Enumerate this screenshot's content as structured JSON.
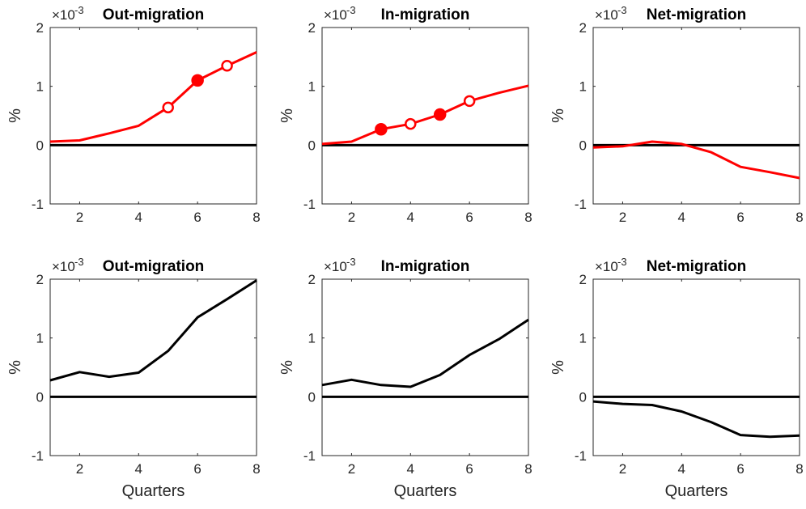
{
  "chart_data": [
    {
      "type": "line",
      "title": "Out-migration",
      "ylabel": "%",
      "xlabel": "",
      "exponent_label": "×10",
      "exponent": "-3",
      "xlim": [
        1,
        8
      ],
      "ylim": [
        -1,
        2
      ],
      "xticks": [
        "2",
        "4",
        "6",
        "8"
      ],
      "yticks": [
        "-1",
        "0",
        "1",
        "2"
      ],
      "line_color": "#ff0000",
      "series": [
        {
          "x": [
            1,
            2,
            3,
            4,
            5,
            6,
            7,
            8
          ],
          "y": [
            0.06,
            0.08,
            0.2,
            0.33,
            0.64,
            1.1,
            1.35,
            1.58
          ]
        }
      ],
      "markers": [
        {
          "x": 5,
          "y": 0.64,
          "filled": false
        },
        {
          "x": 6,
          "y": 1.1,
          "filled": true
        },
        {
          "x": 7,
          "y": 1.35,
          "filled": false
        }
      ]
    },
    {
      "type": "line",
      "title": "In-migration",
      "ylabel": "%",
      "xlabel": "",
      "exponent_label": "×10",
      "exponent": "-3",
      "xlim": [
        1,
        8
      ],
      "ylim": [
        -1,
        2
      ],
      "xticks": [
        "2",
        "4",
        "6",
        "8"
      ],
      "yticks": [
        "-1",
        "0",
        "1",
        "2"
      ],
      "line_color": "#ff0000",
      "series": [
        {
          "x": [
            1,
            2,
            3,
            4,
            5,
            6,
            7,
            8
          ],
          "y": [
            0.02,
            0.06,
            0.27,
            0.36,
            0.52,
            0.75,
            0.89,
            1.01
          ]
        }
      ],
      "markers": [
        {
          "x": 3,
          "y": 0.27,
          "filled": true
        },
        {
          "x": 4,
          "y": 0.36,
          "filled": false
        },
        {
          "x": 5,
          "y": 0.52,
          "filled": true
        },
        {
          "x": 6,
          "y": 0.75,
          "filled": false
        }
      ]
    },
    {
      "type": "line",
      "title": "Net-migration",
      "ylabel": "%",
      "xlabel": "",
      "exponent_label": "×10",
      "exponent": "-3",
      "xlim": [
        1,
        8
      ],
      "ylim": [
        -1,
        2
      ],
      "xticks": [
        "2",
        "4",
        "6",
        "8"
      ],
      "yticks": [
        "-1",
        "0",
        "1",
        "2"
      ],
      "line_color": "#ff0000",
      "series": [
        {
          "x": [
            1,
            2,
            3,
            4,
            5,
            6,
            7,
            8
          ],
          "y": [
            -0.04,
            -0.02,
            0.06,
            0.02,
            -0.12,
            -0.37,
            -0.46,
            -0.56
          ]
        }
      ],
      "markers": []
    },
    {
      "type": "line",
      "title": "Out-migration",
      "ylabel": "%",
      "xlabel": "Quarters",
      "exponent_label": "×10",
      "exponent": "-3",
      "xlim": [
        1,
        8
      ],
      "ylim": [
        -1,
        2
      ],
      "xticks": [
        "2",
        "4",
        "6",
        "8"
      ],
      "yticks": [
        "-1",
        "0",
        "1",
        "2"
      ],
      "line_color": "#000000",
      "series": [
        {
          "x": [
            1,
            2,
            3,
            4,
            5,
            6,
            7,
            8
          ],
          "y": [
            0.28,
            0.42,
            0.34,
            0.41,
            0.78,
            1.35,
            1.66,
            1.98
          ]
        }
      ],
      "markers": []
    },
    {
      "type": "line",
      "title": "In-migration",
      "ylabel": "%",
      "xlabel": "Quarters",
      "exponent_label": "×10",
      "exponent": "-3",
      "xlim": [
        1,
        8
      ],
      "ylim": [
        -1,
        2
      ],
      "xticks": [
        "2",
        "4",
        "6",
        "8"
      ],
      "yticks": [
        "-1",
        "0",
        "1",
        "2"
      ],
      "line_color": "#000000",
      "series": [
        {
          "x": [
            1,
            2,
            3,
            4,
            5,
            6,
            7,
            8
          ],
          "y": [
            0.2,
            0.29,
            0.2,
            0.17,
            0.37,
            0.71,
            0.98,
            1.31
          ]
        }
      ],
      "markers": []
    },
    {
      "type": "line",
      "title": "Net-migration",
      "ylabel": "%",
      "xlabel": "Quarters",
      "exponent_label": "×10",
      "exponent": "-3",
      "xlim": [
        1,
        8
      ],
      "ylim": [
        -1,
        2
      ],
      "xticks": [
        "2",
        "4",
        "6",
        "8"
      ],
      "yticks": [
        "-1",
        "0",
        "1",
        "2"
      ],
      "line_color": "#000000",
      "series": [
        {
          "x": [
            1,
            2,
            3,
            4,
            5,
            6,
            7,
            8
          ],
          "y": [
            -0.08,
            -0.12,
            -0.14,
            -0.25,
            -0.43,
            -0.65,
            -0.68,
            -0.66
          ]
        }
      ],
      "markers": []
    }
  ]
}
